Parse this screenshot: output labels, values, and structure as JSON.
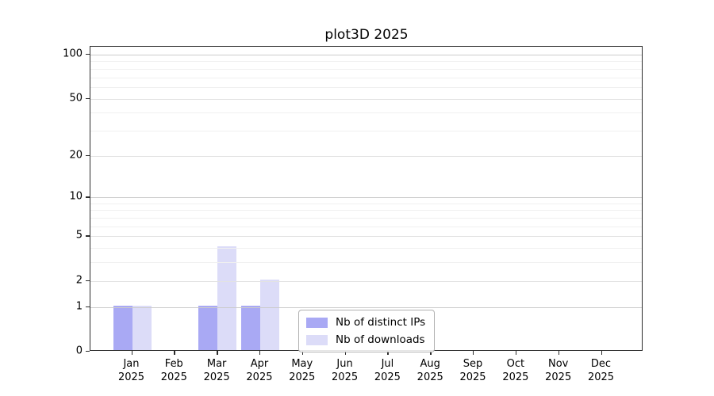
{
  "chart_data": {
    "type": "bar",
    "title": "plot3D 2025",
    "categories": [
      {
        "month": "Jan",
        "year": "2025"
      },
      {
        "month": "Feb",
        "year": "2025"
      },
      {
        "month": "Mar",
        "year": "2025"
      },
      {
        "month": "Apr",
        "year": "2025"
      },
      {
        "month": "May",
        "year": "2025"
      },
      {
        "month": "Jun",
        "year": "2025"
      },
      {
        "month": "Jul",
        "year": "2025"
      },
      {
        "month": "Aug",
        "year": "2025"
      },
      {
        "month": "Sep",
        "year": "2025"
      },
      {
        "month": "Oct",
        "year": "2025"
      },
      {
        "month": "Nov",
        "year": "2025"
      },
      {
        "month": "Dec",
        "year": "2025"
      }
    ],
    "series": [
      {
        "name": "Nb of distinct IPs",
        "color": "#a9a9f4",
        "values": [
          1,
          0,
          1,
          1,
          0,
          0,
          0,
          0,
          0,
          0,
          0,
          0
        ]
      },
      {
        "name": "Nb of downloads",
        "color": "#dcdcf8",
        "values": [
          1,
          0,
          4,
          2,
          0,
          0,
          0,
          0,
          0,
          0,
          0,
          0
        ]
      }
    ],
    "y_axis": {
      "scale": "log1p",
      "ylim": [
        0,
        100
      ],
      "tick_labels": [
        0,
        1,
        2,
        5,
        10,
        20,
        50,
        100
      ],
      "major_gridlines": [
        1,
        10,
        100
      ],
      "mid_gridlines": [
        2,
        5,
        20,
        50
      ],
      "minor_gridlines": [
        3,
        4,
        6,
        7,
        8,
        9,
        30,
        40,
        60,
        70,
        80,
        90
      ]
    },
    "legend_position": "lower center inside",
    "grid": true
  }
}
